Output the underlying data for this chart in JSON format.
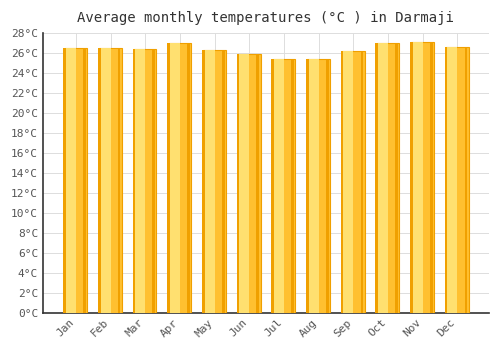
{
  "title": "Average monthly temperatures (°C ) in Darmaji",
  "months": [
    "Jan",
    "Feb",
    "Mar",
    "Apr",
    "May",
    "Jun",
    "Jul",
    "Aug",
    "Sep",
    "Oct",
    "Nov",
    "Dec"
  ],
  "values": [
    26.5,
    26.5,
    26.4,
    27.0,
    26.3,
    25.9,
    25.4,
    25.4,
    26.2,
    27.0,
    27.1,
    26.6
  ],
  "bar_color_dark": "#F0A000",
  "bar_color_mid": "#FFC030",
  "bar_color_light": "#FFE070",
  "background_color": "#FFFFFF",
  "plot_bg_color": "#FFFFFF",
  "grid_color": "#DDDDDD",
  "spine_color": "#333333",
  "tick_color": "#555555",
  "title_color": "#333333",
  "ylim": [
    0,
    28
  ],
  "ytick_step": 2,
  "title_fontsize": 10,
  "tick_fontsize": 8,
  "bar_width": 0.65
}
